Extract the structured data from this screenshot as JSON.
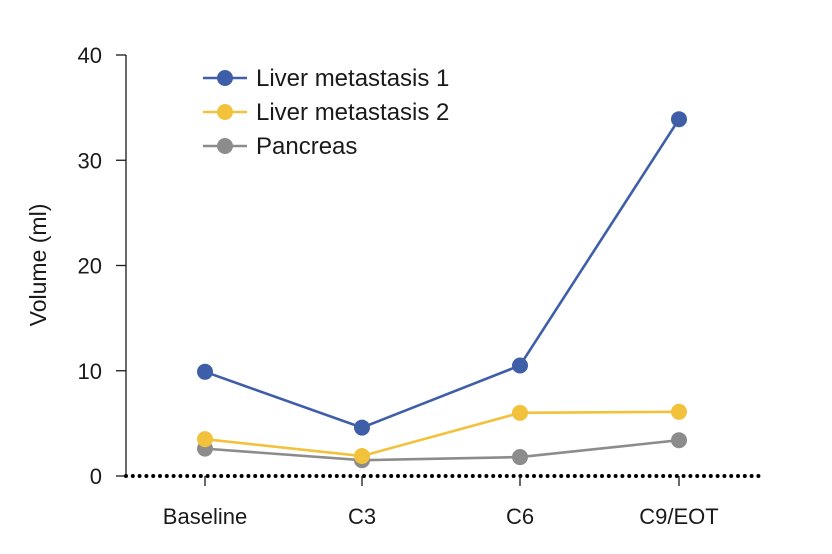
{
  "chart_data": {
    "type": "line",
    "categories": [
      "Baseline",
      "C3",
      "C6",
      "C9/EOT"
    ],
    "series": [
      {
        "name": "Liver metastasis 1",
        "color": "#3f5ea8",
        "values": [
          9.9,
          4.6,
          10.5,
          33.9
        ]
      },
      {
        "name": "Liver metastasis 2",
        "color": "#f2c23c",
        "values": [
          3.5,
          1.9,
          6.0,
          6.1
        ]
      },
      {
        "name": "Pancreas",
        "color": "#8c8c8c",
        "values": [
          2.6,
          1.5,
          1.8,
          3.4
        ]
      }
    ],
    "ylabel": "Volume (ml)",
    "xlabel": "",
    "ylim": [
      0,
      40
    ],
    "yticks": [
      0,
      10,
      20,
      30,
      40
    ],
    "baseline_style": "dotted",
    "legend_position": "top-left",
    "grid": false
  }
}
